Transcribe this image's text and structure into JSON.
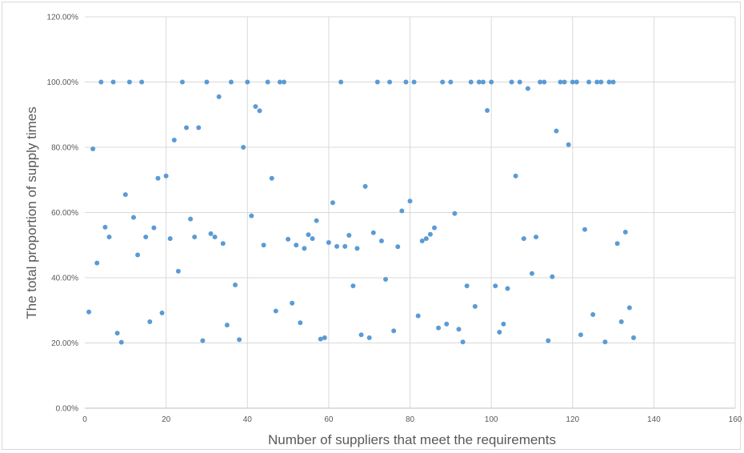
{
  "chart_data": {
    "type": "scatter",
    "title": "",
    "xlabel": "Number of suppliers that meet the requirements",
    "ylabel": "The total proportion of supply times",
    "xlim": [
      0,
      160
    ],
    "ylim": [
      0,
      1.2
    ],
    "x_ticks": [
      "0",
      "20",
      "40",
      "60",
      "80",
      "100",
      "120",
      "140",
      "160"
    ],
    "y_ticks": [
      "0.00%",
      "20.00%",
      "40.00%",
      "60.00%",
      "80.00%",
      "100.00%",
      "120.00%"
    ],
    "grid": true,
    "legend": "none",
    "marker_color": "#5b9bd5",
    "series": [
      {
        "x": [
          1,
          2,
          3,
          4,
          5,
          6,
          7,
          8,
          9,
          10,
          11,
          12,
          13,
          14,
          15,
          16,
          17,
          18,
          19,
          20,
          21,
          22,
          23,
          24,
          25,
          26,
          27,
          28,
          29,
          30,
          31,
          32,
          33,
          34,
          35,
          36,
          37,
          38,
          39,
          40,
          41,
          42,
          43,
          44,
          45,
          46,
          47,
          48,
          49,
          50,
          51,
          52,
          53,
          54,
          55,
          56,
          57,
          58,
          59,
          60,
          61,
          62,
          63,
          64,
          65,
          66,
          67,
          68,
          69,
          70,
          71,
          72,
          73,
          74,
          75,
          76,
          77,
          78,
          79,
          80,
          81,
          82,
          83,
          84,
          85,
          86,
          87,
          88,
          89,
          90,
          91,
          92,
          93,
          94,
          95,
          96,
          97,
          98,
          99,
          100,
          101,
          102,
          103,
          104,
          105,
          106,
          107,
          108,
          109,
          110,
          111,
          112,
          113,
          114,
          115,
          116,
          117,
          118,
          119,
          120,
          121,
          122,
          123,
          124,
          125,
          126,
          127,
          128,
          129,
          130,
          131,
          132,
          133,
          134,
          135
        ],
        "y": [
          0.295,
          0.795,
          0.445,
          1.0,
          0.555,
          0.525,
          1.0,
          0.23,
          0.202,
          0.655,
          1.0,
          0.585,
          0.47,
          1.0,
          0.525,
          0.265,
          0.553,
          0.705,
          0.292,
          0.712,
          0.52,
          0.822,
          0.42,
          1.0,
          0.86,
          0.58,
          0.525,
          0.86,
          0.207,
          1.0,
          0.535,
          0.525,
          0.955,
          0.505,
          0.255,
          1.0,
          0.378,
          0.21,
          0.8,
          1.0,
          0.59,
          0.925,
          0.912,
          0.5,
          1.0,
          0.705,
          0.298,
          1.0,
          1.0,
          0.518,
          0.322,
          0.5,
          0.262,
          0.49,
          0.532,
          0.52,
          0.575,
          0.212,
          0.216,
          0.508,
          0.63,
          0.496,
          1.0,
          0.496,
          0.53,
          0.375,
          0.49,
          0.225,
          0.68,
          0.216,
          0.538,
          1.0,
          0.513,
          0.395,
          1.0,
          0.237,
          0.495,
          0.605,
          1.0,
          0.635,
          1.0,
          0.283,
          0.513,
          0.52,
          0.533,
          0.553,
          0.246,
          1.0,
          0.258,
          1.0,
          0.597,
          0.242,
          0.203,
          0.375,
          1.0,
          0.312,
          1.0,
          1.0,
          0.913,
          1.0,
          0.375,
          0.233,
          0.258,
          0.367,
          1.0,
          0.712,
          1.0,
          0.52,
          0.98,
          0.413,
          0.525,
          1.0,
          1.0,
          0.207,
          0.403,
          0.85,
          1.0,
          1.0,
          0.808,
          1.0,
          1.0,
          0.225,
          0.548,
          1.0,
          0.287,
          1.0,
          1.0,
          0.203,
          1.0,
          1.0,
          0.505,
          0.265,
          0.54,
          0.308,
          0.216
        ]
      }
    ]
  }
}
